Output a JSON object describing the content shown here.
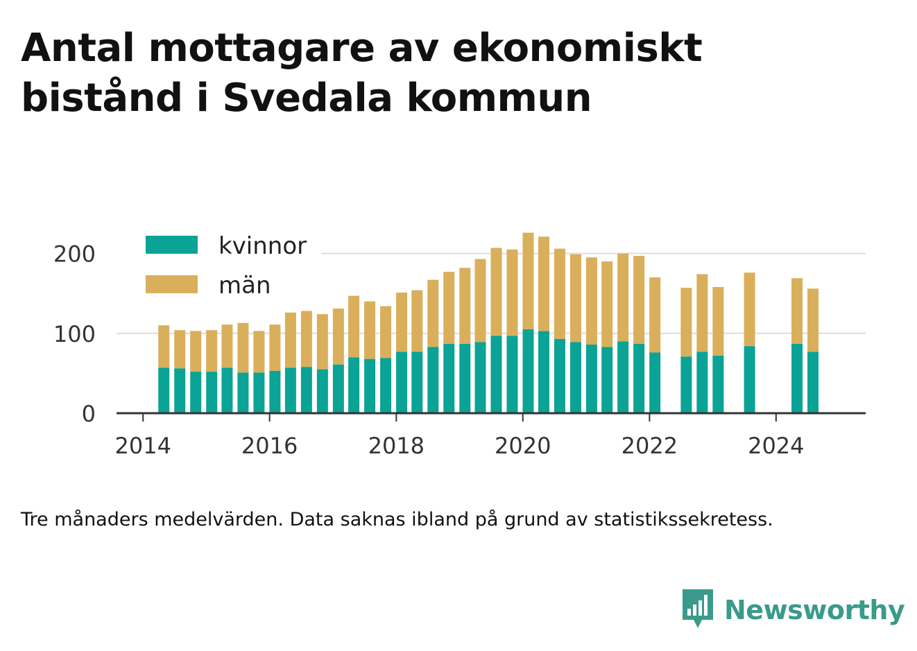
{
  "title": "Antal mottagare av ekonomiskt bistånd i Svedala kommun",
  "note": "Tre månaders medelvärden. Data saknas ibland på grund av statistikssekretess.",
  "brand": {
    "name": "Newsworthy",
    "icon": "newsworthy-logo-icon"
  },
  "colors": {
    "kvinnor": "#0aa396",
    "man": "#d9af5b",
    "grid": "#dddddd",
    "axis": "#333333",
    "brand": "#3a9a8c"
  },
  "chart_data": {
    "type": "bar",
    "stacked": true,
    "title": "Antal mottagare av ekonomiskt bistånd i Svedala kommun",
    "xlabel": "",
    "ylabel": "",
    "ylim": [
      0,
      230
    ],
    "yticks": [
      0,
      100,
      200
    ],
    "xlim": [
      "2013-08-01",
      "2025-06-01"
    ],
    "xticks": [
      "2014",
      "2016",
      "2018",
      "2020",
      "2022",
      "2024"
    ],
    "grid": true,
    "legend": "top-left",
    "x": [
      "2014-05",
      "2014-08",
      "2014-11",
      "2015-02",
      "2015-05",
      "2015-08",
      "2015-11",
      "2016-02",
      "2016-05",
      "2016-08",
      "2016-11",
      "2017-02",
      "2017-05",
      "2017-08",
      "2017-11",
      "2018-02",
      "2018-05",
      "2018-08",
      "2018-11",
      "2019-02",
      "2019-05",
      "2019-08",
      "2019-11",
      "2020-02",
      "2020-05",
      "2020-08",
      "2020-11",
      "2021-02",
      "2021-05",
      "2021-08",
      "2021-11",
      "2022-02",
      "2022-08",
      "2022-11",
      "2023-02",
      "2023-08",
      "2024-05",
      "2024-08"
    ],
    "series": [
      {
        "name": "kvinnor",
        "values": [
          57,
          56,
          52,
          52,
          57,
          51,
          51,
          53,
          57,
          58,
          55,
          61,
          70,
          68,
          69,
          77,
          77,
          83,
          87,
          87,
          89,
          97,
          97,
          105,
          103,
          93,
          89,
          86,
          83,
          90,
          87,
          76,
          71,
          77,
          72,
          84,
          87,
          77
        ]
      },
      {
        "name": "män",
        "values": [
          53,
          48,
          51,
          52,
          54,
          62,
          52,
          58,
          69,
          70,
          69,
          70,
          77,
          72,
          65,
          74,
          77,
          84,
          90,
          95,
          104,
          110,
          108,
          121,
          118,
          113,
          110,
          109,
          107,
          110,
          110,
          94,
          86,
          97,
          86,
          92,
          82,
          79
        ]
      }
    ]
  }
}
